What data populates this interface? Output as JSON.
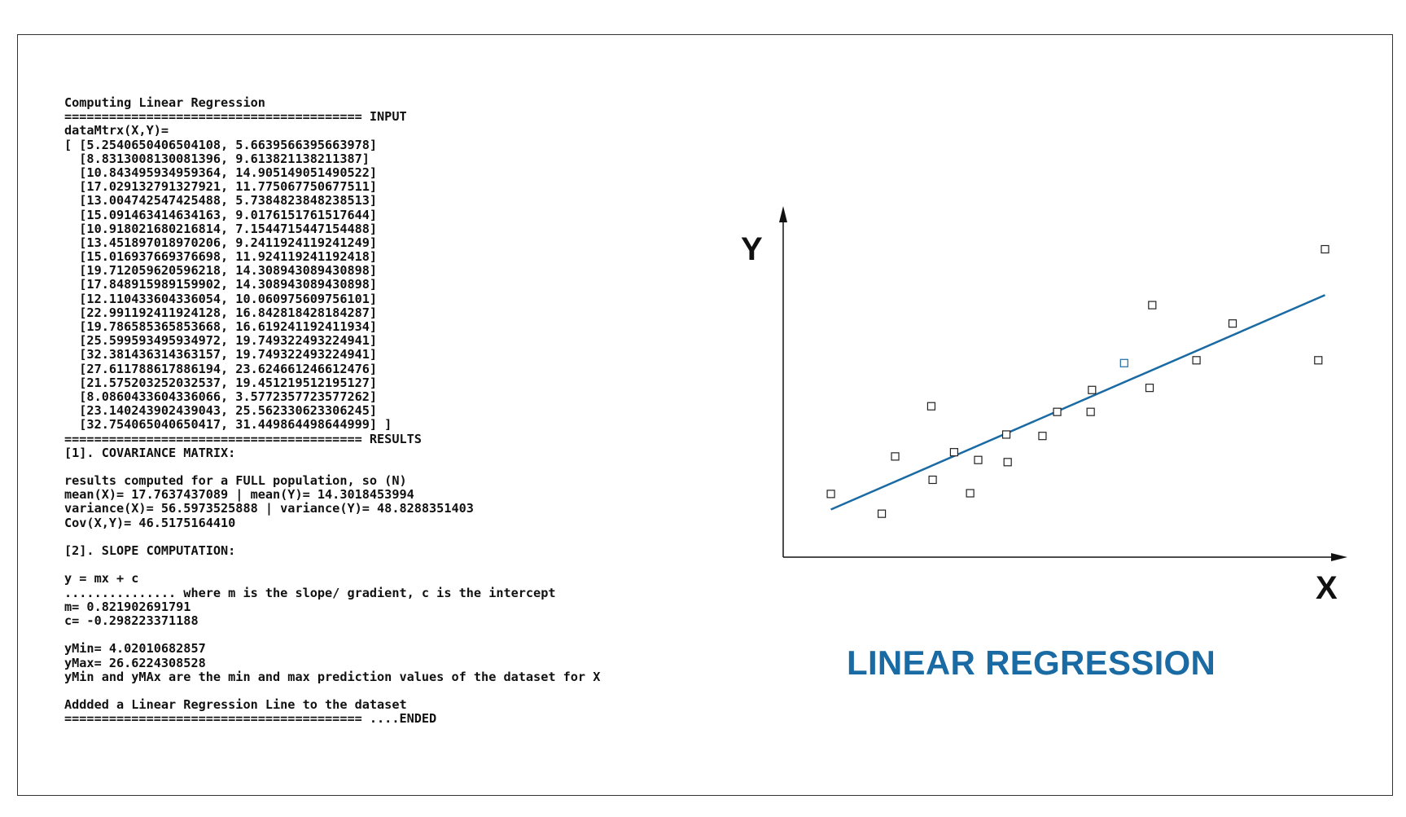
{
  "console": {
    "lines": [
      "Computing Linear Regression",
      "======================================== INPUT",
      "dataMtrx(X,Y)=",
      "[ [5.2540650406504108, 5.6639566395663978]",
      "  [8.8313008130081396, 9.613821138211387]",
      "  [10.843495934959364, 14.905149051490522]",
      "  [17.029132791327921, 11.775067750677511]",
      "  [13.004742547425488, 5.7384823848238513]",
      "  [15.091463414634163, 9.0176151761517644]",
      "  [10.918021680216814, 7.1544715447154488]",
      "  [13.451897018970206, 9.2411924119241249]",
      "  [15.016937669376698, 11.924119241192418]",
      "  [19.712059620596218, 14.308943089430898]",
      "  [17.848915989159902, 14.308943089430898]",
      "  [12.110433604336054, 10.060975609756101]",
      "  [22.991192411924128, 16.842818428184287]",
      "  [19.786585365853668, 16.619241192411934]",
      "  [25.599593495934972, 19.749322493224941]",
      "  [32.381436314363157, 19.749322493224941]",
      "  [27.611788617886194, 23.624661246612476]",
      "  [21.575203252032537, 19.451219512195127]",
      "  [8.0860433604336066, 3.5772357723577262]",
      "  [23.140243902439043, 25.562330623306245]",
      "  [32.754065040650417, 31.449864498644999] ]",
      "======================================== RESULTS",
      "[1]. COVARIANCE MATRIX:",
      "",
      "results computed for a FULL population, so (N)",
      "mean(X)= 17.7637437089 | mean(Y)= 14.3018453994",
      "variance(X)= 56.5973525888 | variance(Y)= 48.8288351403",
      "Cov(X,Y)= 46.5175164410",
      "",
      "[2]. SLOPE COMPUTATION:",
      "",
      "y = mx + c",
      "............... where m is the slope/ gradient, c is the intercept",
      "m= 0.821902691791",
      "c= -0.298223371188",
      "",
      "yMin= 4.02010682857",
      "yMax= 26.6224308528",
      "yMin and yMAx are the min and max prediction values of the dataset for X",
      "",
      "Addded a Linear Regression Line to the dataset",
      "======================================== ....ENDED"
    ]
  },
  "chart_data": {
    "type": "scatter",
    "title": "LINEAR REGRESSION",
    "xlabel": "X",
    "ylabel": "Y",
    "grid": false,
    "xlim": [
      2.6,
      34.0
    ],
    "ylim": [
      -1.0,
      36.0
    ],
    "points": [
      {
        "x": 5.254065040650411,
        "y": 5.663956639566398
      },
      {
        "x": 8.83130081300814,
        "y": 9.613821138211387
      },
      {
        "x": 10.843495934959364,
        "y": 14.905149051490522
      },
      {
        "x": 17.02913279132792,
        "y": 11.775067750677511
      },
      {
        "x": 13.004742547425488,
        "y": 5.738482384823851
      },
      {
        "x": 15.091463414634163,
        "y": 9.017615176151764
      },
      {
        "x": 10.918021680216814,
        "y": 7.154471544715449
      },
      {
        "x": 13.451897018970206,
        "y": 9.241192411924125
      },
      {
        "x": 15.016937669376698,
        "y": 11.924119241192418
      },
      {
        "x": 19.712059620596218,
        "y": 14.308943089430898
      },
      {
        "x": 17.848915989159902,
        "y": 14.308943089430898
      },
      {
        "x": 12.110433604336054,
        "y": 10.0609756097561
      },
      {
        "x": 22.99119241192413,
        "y": 16.842818428184287
      },
      {
        "x": 19.786585365853668,
        "y": 16.619241192411934
      },
      {
        "x": 25.599593495934972,
        "y": 19.74932249322494
      },
      {
        "x": 32.38143631436316,
        "y": 19.74932249322494
      },
      {
        "x": 27.611788617886194,
        "y": 23.624661246612476
      },
      {
        "x": 21.575203252032537,
        "y": 19.451219512195127
      },
      {
        "x": 8.086043360433607,
        "y": 3.577235772357726
      },
      {
        "x": 23.140243902439043,
        "y": 25.562330623306245
      },
      {
        "x": 32.75406504065042,
        "y": 31.449864498645
      }
    ],
    "regression_line": {
      "m": 0.821902691791,
      "c": -0.298223371188,
      "x_from": 5.254065040650411,
      "x_to": 32.75406504065042
    },
    "colors": {
      "line": "#1a6aa3",
      "points": "#222222",
      "highlight_point": "#1a6aa3",
      "axes": "#111111"
    },
    "highlight_index": 17
  }
}
